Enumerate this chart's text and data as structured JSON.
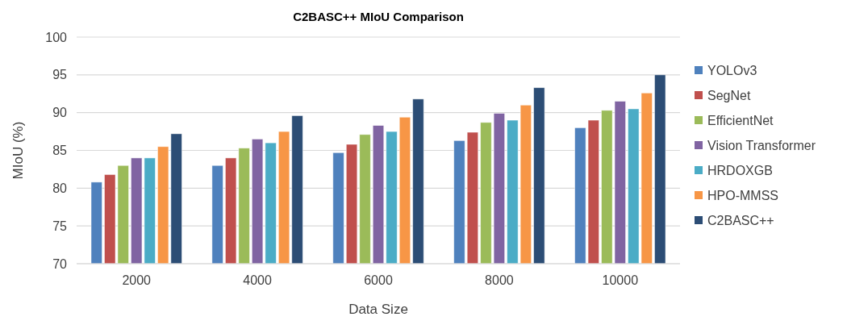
{
  "chart_data": {
    "type": "bar",
    "title": "C2BASC++ MIoU Comparison",
    "xlabel": "Data Size",
    "ylabel": "MIoU (%)",
    "categories": [
      "2000",
      "4000",
      "6000",
      "8000",
      "10000"
    ],
    "series": [
      {
        "name": "YOLOv3",
        "color": "#4f81bd",
        "values": [
          80.8,
          83.0,
          84.7,
          86.3,
          88.0
        ]
      },
      {
        "name": "SegNet",
        "color": "#c0504d",
        "values": [
          81.8,
          84.0,
          85.8,
          87.4,
          89.0
        ]
      },
      {
        "name": "EfficientNet",
        "color": "#9bbb59",
        "values": [
          83.0,
          85.3,
          87.1,
          88.7,
          90.3
        ]
      },
      {
        "name": "Vision Transformer",
        "color": "#8064a2",
        "values": [
          84.0,
          86.5,
          88.3,
          89.9,
          91.5
        ]
      },
      {
        "name": "HRDOXGB",
        "color": "#4bacc6",
        "values": [
          84.0,
          86.0,
          87.5,
          89.0,
          90.5
        ]
      },
      {
        "name": "HPO-MMSS",
        "color": "#f79646",
        "values": [
          85.5,
          87.5,
          89.4,
          91.0,
          92.6
        ]
      },
      {
        "name": "C2BASC++",
        "color": "#2c4d75",
        "values": [
          87.2,
          89.6,
          91.8,
          93.3,
          95.0
        ]
      }
    ],
    "ylim": [
      70,
      100
    ],
    "yticks": [
      70,
      75,
      80,
      85,
      90,
      95,
      100
    ],
    "grid": "y",
    "legend": "right"
  }
}
